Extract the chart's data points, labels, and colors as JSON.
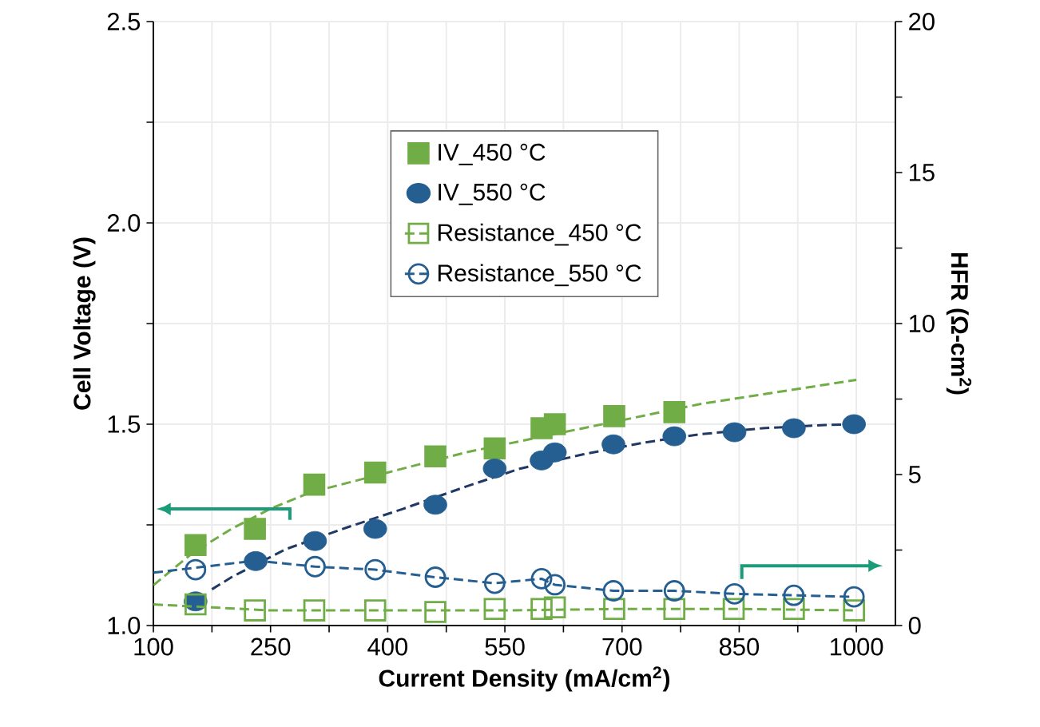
{
  "chart_data": {
    "type": "scatter",
    "xlabel": "Current Density (mA/cm$^{2}$)",
    "ylabel": "Cell Voltage (V)",
    "y2label": "HFR (Ω-cm$^{2}$)",
    "xlim": [
      100,
      1050
    ],
    "ylim": [
      1.0,
      2.5
    ],
    "y2lim": [
      0,
      20
    ],
    "xticks": [
      100,
      {
        "value": 175,
        "label": null
      },
      250,
      {
        "value": 325,
        "label": null
      },
      400,
      {
        "value": 475,
        "label": null
      },
      550,
      {
        "value": 625,
        "label": null
      },
      700,
      {
        "value": 775,
        "label": null
      },
      850,
      {
        "value": 925,
        "label": null
      },
      1000
    ],
    "yticks": [
      {
        "value": 1.0,
        "label": "1.0"
      },
      {
        "value": 1.25,
        "label": null
      },
      {
        "value": 1.5,
        "label": "1.5"
      },
      {
        "value": 1.75,
        "label": null
      },
      {
        "value": 2.0,
        "label": "2.0"
      },
      {
        "value": 2.25,
        "label": null
      },
      {
        "value": 2.5,
        "label": "2.5"
      }
    ],
    "y2ticks": [
      0,
      {
        "value": 2.5,
        "label": null
      },
      5,
      {
        "value": 7.5,
        "label": null
      },
      10,
      {
        "value": 12.5,
        "label": null
      },
      15,
      {
        "value": 17.5,
        "label": null
      },
      20
    ],
    "grid": true,
    "legend": "top",
    "series": [
      {
        "name": "IV_450 °C",
        "type": "scatter",
        "marker": "square",
        "color": "#70ad47",
        "x": [
          154,
          230,
          306,
          384,
          461,
          537,
          597,
          614,
          690,
          767
        ],
        "values": [
          1.2,
          1.24,
          1.35,
          1.38,
          1.42,
          1.44,
          1.49,
          1.5,
          1.52,
          1.53
        ]
      },
      {
        "name": "IV_550 °C",
        "type": "scatter",
        "marker": "circle",
        "color": "#255e91",
        "x": [
          154,
          231,
          307,
          384,
          461,
          537,
          597,
          614,
          689,
          767,
          844,
          920,
          997
        ],
        "values": [
          1.06,
          1.16,
          1.21,
          1.24,
          1.3,
          1.39,
          1.41,
          1.43,
          1.45,
          1.47,
          1.48,
          1.49,
          1.5
        ]
      },
      {
        "name": "Resistance_450 °C",
        "type": "scatter",
        "marker": "square",
        "axis": "y2",
        "color": "#70ad47",
        "x": [
          154,
          230,
          306,
          384,
          461,
          537,
          597,
          614,
          690,
          767,
          843,
          920,
          997
        ],
        "values": [
          0.7,
          0.5,
          0.5,
          0.5,
          0.45,
          0.55,
          0.55,
          0.6,
          0.55,
          0.55,
          0.55,
          0.55,
          0.5
        ]
      },
      {
        "name": "Resistance_550 °C",
        "type": "scatter",
        "marker": "circle",
        "axis": "y2",
        "color": "#255e91",
        "x": [
          154,
          231,
          307,
          384,
          461,
          537,
          597,
          614,
          689,
          767,
          844,
          920,
          997
        ],
        "values": [
          1.85,
          null,
          1.95,
          1.85,
          1.6,
          1.4,
          1.55,
          1.35,
          1.15,
          1.15,
          1.05,
          1.0,
          0.95
        ]
      },
      {
        "type": "line",
        "line_style": "dashed",
        "marker": "none",
        "color": "#70ad47",
        "x": [
          100,
          150,
          200,
          250,
          300,
          400,
          500,
          600,
          700,
          800,
          900,
          1000
        ],
        "values": [
          1.1,
          1.18,
          1.24,
          1.29,
          1.33,
          1.38,
          1.43,
          1.47,
          1.51,
          1.55,
          1.58,
          1.61
        ]
      },
      {
        "type": "line",
        "line_style": "dashed",
        "marker": "none",
        "color": "#203864",
        "x": [
          175,
          200,
          270,
          350,
          420,
          500,
          570,
          650,
          730,
          800,
          880,
          960,
          1000
        ],
        "values": [
          1.09,
          1.12,
          1.19,
          1.245,
          1.29,
          1.345,
          1.39,
          1.425,
          1.455,
          1.475,
          1.49,
          1.498,
          1.5
        ]
      },
      {
        "type": "line",
        "line_style": "dashed",
        "marker": "none",
        "axis": "y2",
        "color": "#70ad47",
        "x": [
          100,
          175,
          250,
          400,
          550,
          700,
          850,
          1000
        ],
        "values": [
          0.7,
          0.6,
          0.5,
          0.5,
          0.5,
          0.55,
          0.55,
          0.5
        ]
      },
      {
        "type": "line",
        "line_style": "dashed",
        "marker": "none",
        "axis": "y2",
        "color": "#255e91",
        "x": [
          100,
          231,
          307,
          384,
          461,
          537,
          597,
          614,
          689,
          767,
          844,
          920,
          997
        ],
        "values": [
          1.75,
          2.15,
          1.95,
          1.85,
          1.6,
          1.4,
          1.55,
          1.35,
          1.15,
          1.15,
          1.05,
          1.0,
          0.95
        ]
      }
    ]
  }
}
